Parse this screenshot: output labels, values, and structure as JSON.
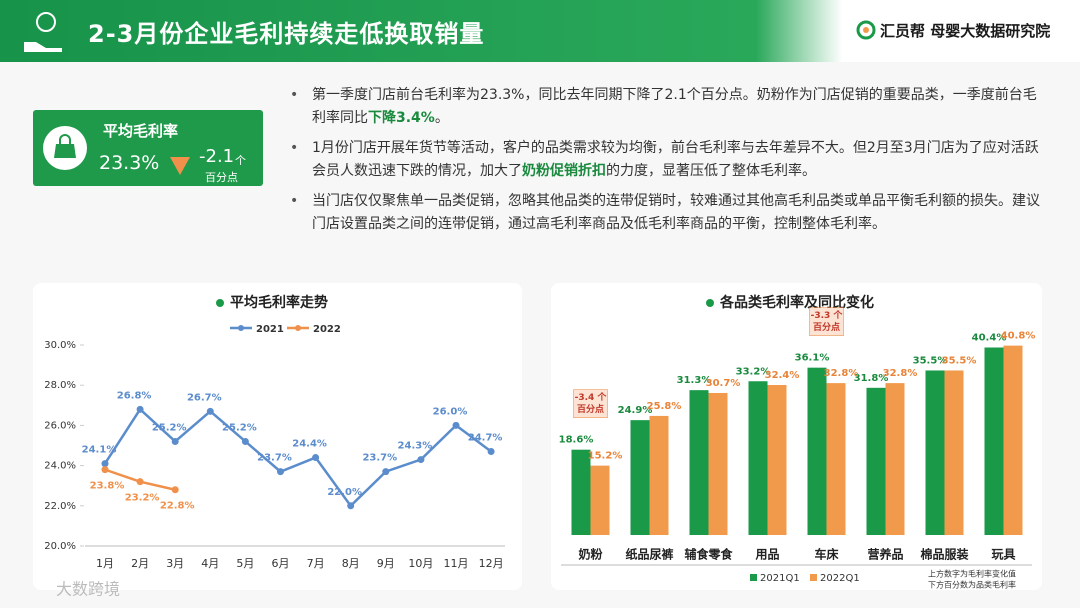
{
  "header": {
    "title": "2-3月份企业毛利持续走低换取销量",
    "brand": "汇员帮 母婴大数据研究院"
  },
  "kpi": {
    "label": "平均毛利率",
    "value": "23.3%",
    "change": "-2.1",
    "unit": "个",
    "unit2": "百分点"
  },
  "bullets": [
    [
      {
        "text": "第一季度门店前台毛利率为23.3%，同比去年同期下降了2.1个百分点。奶粉作为门店促销的重要品类，一季度前台毛利率同比"
      },
      {
        "text": "下降3.4%",
        "bold": true
      },
      {
        "text": "。"
      }
    ],
    [
      {
        "text": "1月份门店开展年货节等活动，客户的品类需求较为均衡，前台毛利率与去年差异不大。但2月至3月门店为了应对活跃会员人数迅速下跌的情况，加大了"
      },
      {
        "text": "奶粉促销折扣",
        "bold": true
      },
      {
        "text": "的力度，显著压低了整体毛利率。"
      }
    ],
    [
      {
        "text": "当门店仅仅聚焦单一品类促销，忽略其他品类的连带促销时，较难通过其他高毛利品类或单品平衡毛利额的损失。建议门店设置品类之间的连带促销，通过高毛利率商品及低毛利率商品的平衡，控制整体毛利率。"
      }
    ]
  ],
  "chart_data": [
    {
      "type": "line",
      "title": "平均毛利率走势",
      "categories": [
        "1月",
        "2月",
        "3月",
        "4月",
        "5月",
        "6月",
        "7月",
        "8月",
        "9月",
        "10月",
        "11月",
        "12月"
      ],
      "series": [
        {
          "name": "2021",
          "color": "#5b8ccc",
          "values": [
            24.1,
            26.8,
            25.2,
            26.7,
            25.2,
            23.7,
            24.4,
            22.0,
            23.7,
            24.3,
            26.0,
            24.7
          ],
          "value_labels": [
            "24.1%",
            "26.8%",
            "25.2%",
            "26.7%",
            "25.2%",
            "23.7%",
            "24.4%",
            "22.0%",
            "23.7%",
            "24.3%",
            "26.0%",
            "24.7%"
          ]
        },
        {
          "name": "2022",
          "color": "#f0904a",
          "values": [
            23.8,
            23.2,
            22.8,
            null,
            null,
            null,
            null,
            null,
            null,
            null,
            null,
            null
          ],
          "value_labels": [
            "23.8%",
            "23.2%",
            "22.8%",
            null,
            null,
            null,
            null,
            null,
            null,
            null,
            null,
            null
          ]
        }
      ],
      "ylim": [
        20,
        30
      ],
      "yticks": [
        {
          "value": 20,
          "label": "20.0%"
        },
        {
          "value": 22,
          "label": "22.0%"
        },
        {
          "value": 24,
          "label": "24.0%"
        },
        {
          "value": 26,
          "label": "26.0%"
        },
        {
          "value": 28,
          "label": "28.0%"
        },
        {
          "value": 30,
          "label": "30.0%"
        }
      ]
    },
    {
      "type": "bar",
      "title": "各品类毛利率及同比变化",
      "categories": [
        "奶粉",
        "纸品尿裤",
        "辅食零食",
        "用品",
        "车床",
        "营养品",
        "棉品服装",
        "玩具"
      ],
      "series": [
        {
          "name": "2021Q1",
          "color": "#1a9a48",
          "values": [
            18.6,
            24.9,
            31.3,
            33.2,
            36.1,
            31.8,
            35.5,
            40.4
          ],
          "value_labels": [
            "18.6%",
            "24.9%",
            "31.3%",
            "33.2%",
            "36.1%",
            "31.8%",
            "35.5%",
            "40.4%"
          ]
        },
        {
          "name": "2022Q1",
          "color": "#f29a4b",
          "values": [
            15.2,
            25.8,
            30.7,
            32.4,
            32.8,
            32.8,
            35.5,
            40.8
          ],
          "value_labels": [
            "15.2%",
            "25.8%",
            "30.7%",
            "32.4%",
            "32.8%",
            "32.8%",
            "35.5%",
            "40.8%"
          ]
        }
      ],
      "ylim": [
        -6,
        42
      ],
      "annotations": [
        {
          "category": 0,
          "text": "-3.4 个",
          "text2": "百分点"
        },
        {
          "category": 4,
          "text": "-3.3 个",
          "text2": "百分点"
        }
      ],
      "notes": [
        "上方数字为毛利率变化值",
        "下方百分数为品类毛利率"
      ]
    }
  ],
  "footer": {
    "watermark": "大数跨境"
  }
}
